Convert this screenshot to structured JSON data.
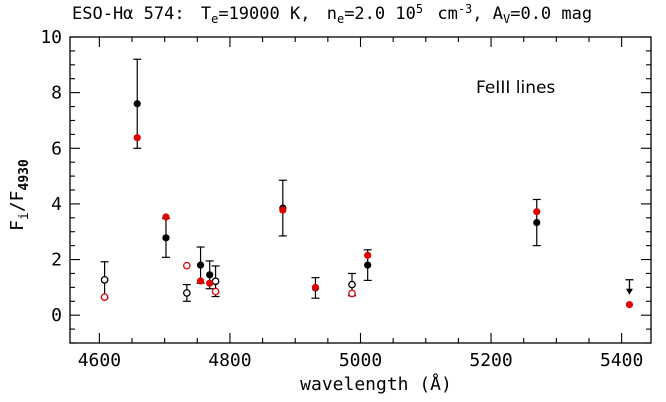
{
  "chart_data": {
    "type": "scatter",
    "title": "ESO-Hα 574: Tₑ=19000 K, nₑ=2.0 10⁵ cm⁻³, Aᵥ=0.0 mag",
    "title_parts": {
      "object": "ESO-Hα 574:",
      "te_label": "T",
      "te_sub": "e",
      "te_value": "=19000 K,",
      "ne_label": "n",
      "ne_sub": "e",
      "ne_value": "=2.0 10",
      "ne_exp": "5",
      "ne_unit": "cm",
      "ne_unit_exp": "-3",
      "av_label": ", A",
      "av_sub": "V",
      "av_value": "=0.0 mag"
    },
    "xlabel": "wavelength (Å)",
    "ylabel_main": "F",
    "ylabel_sub1": "i",
    "ylabel_sep": "/F",
    "ylabel_sub2": "4930",
    "annotation": "FeIII lines",
    "xlim": [
      4555,
      5445
    ],
    "ylim": [
      -1,
      10
    ],
    "xticks": [
      4600,
      4800,
      5000,
      5200,
      5400
    ],
    "yticks": [
      0,
      2,
      4,
      6,
      8,
      10
    ],
    "colors": {
      "observed": "#000000",
      "model": "#e00000"
    },
    "series": [
      {
        "name": "observed",
        "color": "#000000",
        "points": [
          {
            "x": 4608,
            "y": 1.27,
            "yerr_low": 0.65,
            "yerr_high": 0.65,
            "filled": false
          },
          {
            "x": 4658,
            "y": 7.6,
            "yerr_low": 1.6,
            "yerr_high": 1.6,
            "filled": true
          },
          {
            "x": 4702,
            "y": 2.78,
            "yerr_low": 0.7,
            "yerr_high": 0.7,
            "filled": true
          },
          {
            "x": 4734,
            "y": 0.8,
            "yerr_low": 0.3,
            "yerr_high": 0.3,
            "filled": false
          },
          {
            "x": 4755,
            "y": 1.8,
            "yerr_low": 0.65,
            "yerr_high": 0.65,
            "filled": true
          },
          {
            "x": 4769,
            "y": 1.45,
            "yerr_low": 0.5,
            "yerr_high": 0.5,
            "filled": true
          },
          {
            "x": 4778,
            "y": 1.22,
            "yerr_low": 0.55,
            "yerr_high": 0.55,
            "filled": false
          },
          {
            "x": 4881,
            "y": 3.85,
            "yerr_low": 1.0,
            "yerr_high": 1.0,
            "filled": true
          },
          {
            "x": 4931,
            "y": 0.98,
            "yerr_low": 0.37,
            "yerr_high": 0.37,
            "filled": true
          },
          {
            "x": 4987,
            "y": 1.1,
            "yerr_low": 0.4,
            "yerr_high": 0.4,
            "filled": false
          },
          {
            "x": 5011,
            "y": 1.8,
            "yerr_low": 0.55,
            "yerr_high": 0.55,
            "filled": true
          },
          {
            "x": 5270,
            "y": 3.33,
            "yerr_low": 0.83,
            "yerr_high": 0.83,
            "filled": true
          },
          {
            "x": 5412,
            "y": 0.95,
            "upper_limit": true,
            "filled": true
          }
        ]
      },
      {
        "name": "model",
        "color": "#e00000",
        "points": [
          {
            "x": 4608,
            "y": 0.65,
            "filled": false
          },
          {
            "x": 4658,
            "y": 6.38,
            "filled": true
          },
          {
            "x": 4702,
            "y": 3.53,
            "filled": true
          },
          {
            "x": 4734,
            "y": 1.78,
            "filled": false
          },
          {
            "x": 4755,
            "y": 1.23,
            "filled": true
          },
          {
            "x": 4769,
            "y": 1.15,
            "filled": true
          },
          {
            "x": 4778,
            "y": 0.85,
            "filled": false
          },
          {
            "x": 4881,
            "y": 3.78,
            "filled": true
          },
          {
            "x": 4931,
            "y": 1.0,
            "filled": true
          },
          {
            "x": 4987,
            "y": 0.78,
            "filled": false
          },
          {
            "x": 5011,
            "y": 2.15,
            "filled": true
          },
          {
            "x": 5270,
            "y": 3.72,
            "filled": true
          },
          {
            "x": 5412,
            "y": 0.38,
            "filled": true
          }
        ]
      }
    ]
  }
}
